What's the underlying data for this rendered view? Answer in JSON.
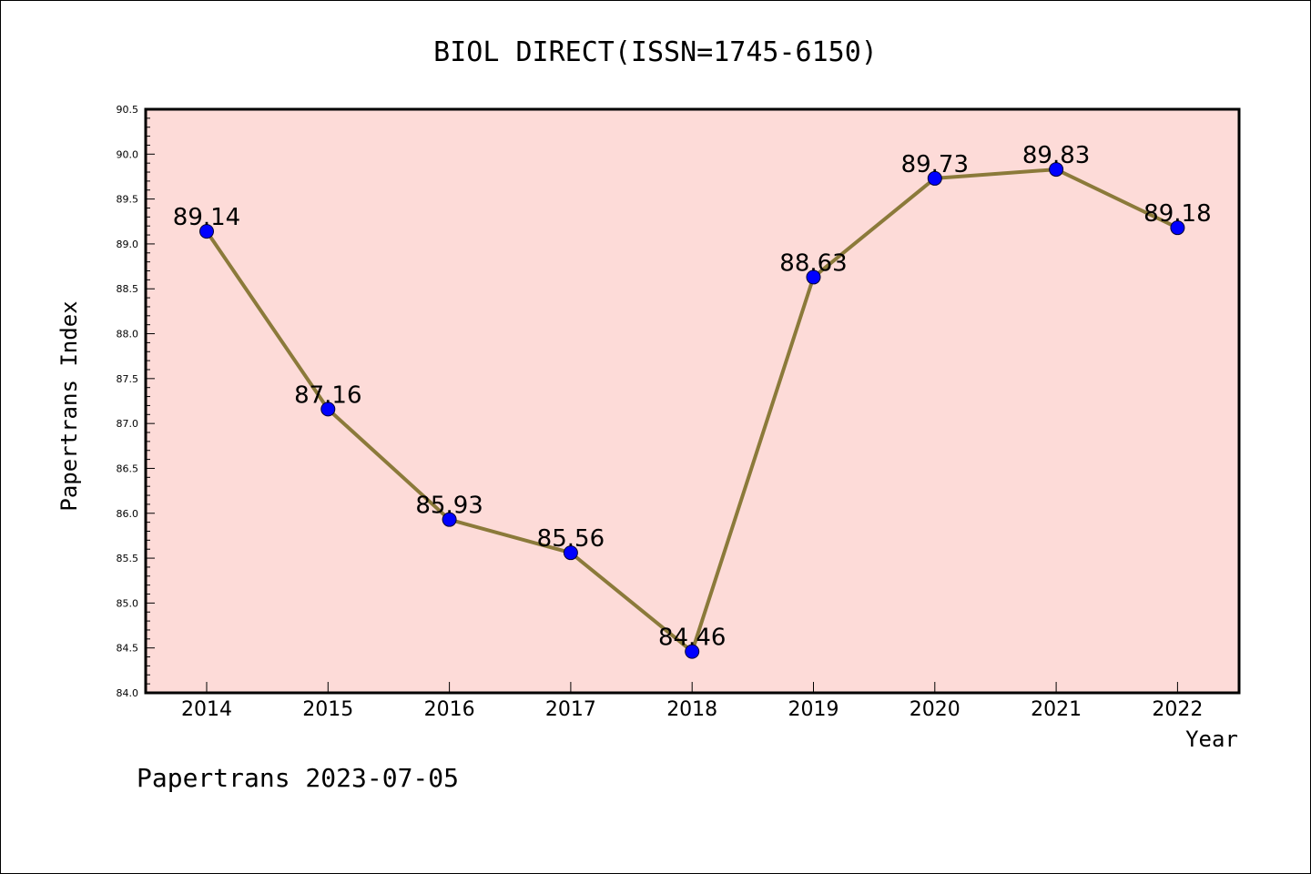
{
  "chart_data": {
    "type": "line",
    "title": "BIOL DIRECT(ISSN=1745-6150)",
    "xlabel": "Year",
    "ylabel": "Papertrans Index",
    "categories": [
      "2014",
      "2015",
      "2016",
      "2017",
      "2018",
      "2019",
      "2020",
      "2021",
      "2022"
    ],
    "values": [
      89.14,
      87.16,
      85.93,
      85.56,
      84.46,
      88.63,
      89.73,
      89.83,
      89.18
    ],
    "data_labels": [
      "89.14",
      "87.16",
      "85.93",
      "85.56",
      "84.46",
      "88.63",
      "89.73",
      "89.83",
      "89.18"
    ],
    "ylim": [
      84.0,
      90.5
    ],
    "yticks": [
      "84.0",
      "84.5",
      "85.0",
      "85.5",
      "86.0",
      "86.5",
      "87.0",
      "87.5",
      "88.0",
      "88.5",
      "89.0",
      "89.5",
      "90.0",
      "90.5"
    ],
    "grid": false,
    "colors": {
      "plot_background": "#fddbd8",
      "line": "#8b7a3a",
      "marker": "#0000ff"
    }
  },
  "footer": "Papertrans 2023-07-05"
}
